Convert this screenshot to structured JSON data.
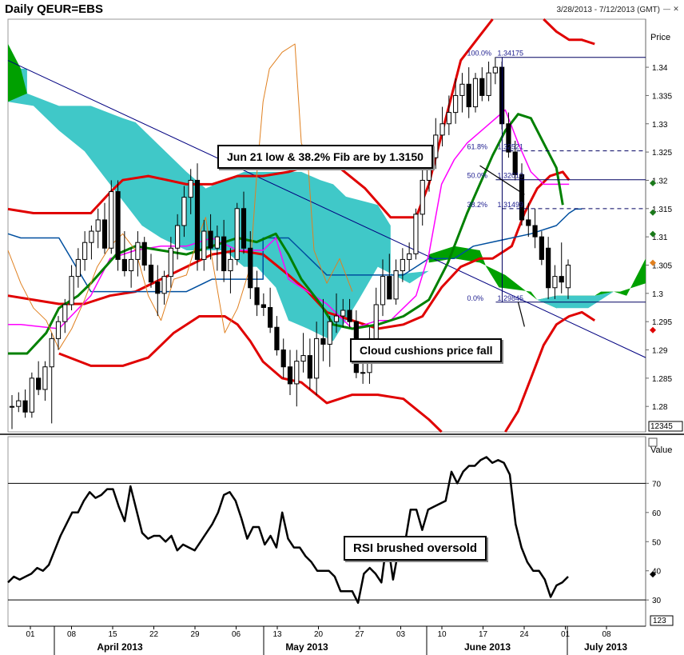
{
  "window": {
    "title": "Daily QEUR=EBS",
    "date_range": "3/28/2013 - 7/12/2013 (GMT)"
  },
  "chart_data": [
    {
      "type": "candlestick",
      "title": "Daily QEUR=EBS",
      "ylabel": "Price",
      "ylim": [
        1.2755,
        1.3485
      ],
      "y_ticks": [
        "1.28",
        "1.285",
        "1.29",
        "1.295",
        "1.3",
        "1.305",
        "1.31",
        "1.315",
        "1.32",
        "1.325",
        "1.33",
        "1.335",
        "1.34"
      ],
      "x_ticks": [
        "01",
        "08",
        "15",
        "22",
        "29",
        "06",
        "13",
        "20",
        "27",
        "03",
        "10",
        "17",
        "24",
        "01",
        "08"
      ],
      "months": [
        "April 2013",
        "May 2013",
        "June 2013",
        "July 2013"
      ],
      "price_box_label": "12345",
      "candles": [
        [
          1.28,
          1.282,
          1.276,
          1.28
        ],
        [
          1.28,
          1.2825,
          1.279,
          1.281
        ],
        [
          1.281,
          1.283,
          1.278,
          1.279
        ],
        [
          1.279,
          1.286,
          1.278,
          1.285
        ],
        [
          1.285,
          1.288,
          1.282,
          1.283
        ],
        [
          1.283,
          1.288,
          1.281,
          1.287
        ],
        [
          1.287,
          1.293,
          1.277,
          1.292
        ],
        [
          1.292,
          1.296,
          1.29,
          1.295
        ],
        [
          1.295,
          1.299,
          1.293,
          1.298
        ],
        [
          1.298,
          1.305,
          1.297,
          1.303
        ],
        [
          1.303,
          1.308,
          1.301,
          1.306
        ],
        [
          1.306,
          1.311,
          1.304,
          1.309
        ],
        [
          1.309,
          1.312,
          1.306,
          1.311
        ],
        [
          1.311,
          1.315,
          1.308,
          1.313
        ],
        [
          1.313,
          1.316,
          1.307,
          1.308
        ],
        [
          1.308,
          1.32,
          1.307,
          1.318
        ],
        [
          1.318,
          1.32,
          1.304,
          1.306
        ],
        [
          1.306,
          1.311,
          1.303,
          1.304
        ],
        [
          1.304,
          1.308,
          1.301,
          1.306
        ],
        [
          1.306,
          1.311,
          1.303,
          1.309
        ],
        [
          1.309,
          1.31,
          1.304,
          1.305
        ],
        [
          1.305,
          1.307,
          1.301,
          1.302
        ],
        [
          1.302,
          1.305,
          1.296,
          1.3
        ],
        [
          1.3,
          1.304,
          1.298,
          1.303
        ],
        [
          1.303,
          1.31,
          1.301,
          1.308
        ],
        [
          1.308,
          1.314,
          1.306,
          1.312
        ],
        [
          1.312,
          1.319,
          1.31,
          1.317
        ],
        [
          1.317,
          1.322,
          1.314,
          1.32
        ],
        [
          1.32,
          1.323,
          1.304,
          1.306
        ],
        [
          1.306,
          1.313,
          1.304,
          1.311
        ],
        [
          1.311,
          1.314,
          1.306,
          1.308
        ],
        [
          1.308,
          1.312,
          1.304,
          1.31
        ],
        [
          1.31,
          1.313,
          1.302,
          1.304
        ],
        [
          1.304,
          1.308,
          1.3,
          1.306
        ],
        [
          1.306,
          1.316,
          1.305,
          1.315
        ],
        [
          1.315,
          1.318,
          1.307,
          1.308
        ],
        [
          1.308,
          1.311,
          1.299,
          1.301
        ],
        [
          1.301,
          1.304,
          1.296,
          1.298
        ],
        [
          1.298,
          1.3,
          1.296,
          1.2975
        ],
        [
          1.2975,
          1.301,
          1.293,
          1.294
        ],
        [
          1.294,
          1.296,
          1.289,
          1.29
        ],
        [
          1.29,
          1.292,
          1.285,
          1.287
        ],
        [
          1.287,
          1.29,
          1.282,
          1.284
        ],
        [
          1.284,
          1.29,
          1.28,
          1.288
        ],
        [
          1.288,
          1.293,
          1.286,
          1.289
        ],
        [
          1.289,
          1.292,
          1.283,
          1.285
        ],
        [
          1.285,
          1.295,
          1.282,
          1.292
        ],
        [
          1.292,
          1.299,
          1.288,
          1.291
        ],
        [
          1.291,
          1.296,
          1.287,
          1.295
        ],
        [
          1.295,
          1.3,
          1.293,
          1.296
        ],
        [
          1.296,
          1.299,
          1.294,
          1.297
        ],
        [
          1.297,
          1.299,
          1.294,
          1.295
        ],
        [
          1.295,
          1.297,
          1.285,
          1.286
        ],
        [
          1.286,
          1.289,
          1.284,
          1.286
        ],
        [
          1.286,
          1.294,
          1.284,
          1.292
        ],
        [
          1.292,
          1.301,
          1.29,
          1.298
        ],
        [
          1.298,
          1.306,
          1.296,
          1.303
        ],
        [
          1.303,
          1.307,
          1.299,
          1.299
        ],
        [
          1.299,
          1.306,
          1.298,
          1.304
        ],
        [
          1.304,
          1.308,
          1.302,
          1.306
        ],
        [
          1.306,
          1.309,
          1.304,
          1.307
        ],
        [
          1.307,
          1.315,
          1.306,
          1.314
        ],
        [
          1.314,
          1.323,
          1.312,
          1.32
        ],
        [
          1.32,
          1.326,
          1.318,
          1.324
        ],
        [
          1.324,
          1.331,
          1.322,
          1.328
        ],
        [
          1.328,
          1.333,
          1.326,
          1.33
        ],
        [
          1.33,
          1.335,
          1.328,
          1.332
        ],
        [
          1.332,
          1.338,
          1.33,
          1.335
        ],
        [
          1.335,
          1.339,
          1.332,
          1.337
        ],
        [
          1.337,
          1.34,
          1.331,
          1.333
        ],
        [
          1.333,
          1.339,
          1.332,
          1.338
        ],
        [
          1.338,
          1.34,
          1.334,
          1.335
        ],
        [
          1.335,
          1.341,
          1.334,
          1.339
        ],
        [
          1.339,
          1.3418,
          1.337,
          1.34
        ],
        [
          1.34,
          1.341,
          1.329,
          1.33
        ],
        [
          1.33,
          1.332,
          1.324,
          1.325
        ],
        [
          1.325,
          1.327,
          1.32,
          1.321
        ],
        [
          1.321,
          1.323,
          1.312,
          1.313
        ],
        [
          1.313,
          1.316,
          1.31,
          1.312
        ],
        [
          1.312,
          1.315,
          1.308,
          1.31
        ],
        [
          1.31,
          1.311,
          1.305,
          1.306
        ],
        [
          1.308,
          1.31,
          1.299,
          1.301
        ],
        [
          1.301,
          1.305,
          1.299,
          1.303
        ],
        [
          1.303,
          1.309,
          1.3,
          1.302
        ],
        [
          1.301,
          1.306,
          1.299,
          1.305
        ]
      ],
      "fib_levels": [
        {
          "pct": "100.0%",
          "val": "1.34175",
          "y": 1.34175
        },
        {
          "pct": "61.8%",
          "val": "1.32521",
          "y": 1.32521
        },
        {
          "pct": "50.0%",
          "val": "1.32010",
          "y": 1.3201
        },
        {
          "pct": "38.2%",
          "val": "1.31499",
          "y": 1.31499
        },
        {
          "pct": "0.0%",
          "val": "1.29845",
          "y": 1.29845
        }
      ],
      "annotations": [
        {
          "key": "fib",
          "text": "Jun 21 low & 38.2% Fib are by 1.3150"
        },
        {
          "key": "cloud",
          "text": "Cloud cushions price fall"
        }
      ],
      "colors": {
        "up": "#ffffff",
        "down": "#000000",
        "cloud_bull": "#00a000",
        "cloud_bear": "#40c8c8",
        "bollinger": "#e00000",
        "tenkan": "#ff00ff",
        "kijun": "#004f9f",
        "ma": "#008000",
        "chikou": "#e08020",
        "trend": "#000080"
      }
    },
    {
      "type": "line",
      "ylabel": "Value",
      "ylim": [
        21,
        86
      ],
      "y_ticks": [
        "30",
        "40",
        "50",
        "60",
        "70"
      ],
      "levels": [
        30,
        70
      ],
      "value_box_label": "123",
      "annotation": "RSI brushed oversold",
      "series": [
        {
          "values": [
            36,
            38,
            37,
            38,
            39,
            41,
            40,
            42,
            47,
            52,
            56,
            60,
            60,
            64,
            67,
            65,
            66,
            68,
            68,
            62,
            57,
            69,
            61,
            53,
            51,
            52,
            52,
            50,
            52,
            47,
            49,
            48,
            47,
            50,
            53,
            56,
            60,
            66,
            67,
            64,
            58,
            51,
            55,
            55,
            49,
            52,
            48,
            60,
            51,
            48,
            48,
            45,
            43,
            40,
            40,
            40,
            38,
            33,
            33,
            33,
            29,
            39,
            41,
            39,
            36,
            51,
            37,
            48,
            49,
            61,
            61,
            54,
            61,
            62,
            63,
            64,
            74,
            70,
            74,
            76,
            76,
            78,
            79,
            77,
            78,
            77,
            73,
            56,
            48,
            43,
            40,
            40,
            37,
            31,
            35,
            36,
            38
          ]
        }
      ]
    }
  ]
}
